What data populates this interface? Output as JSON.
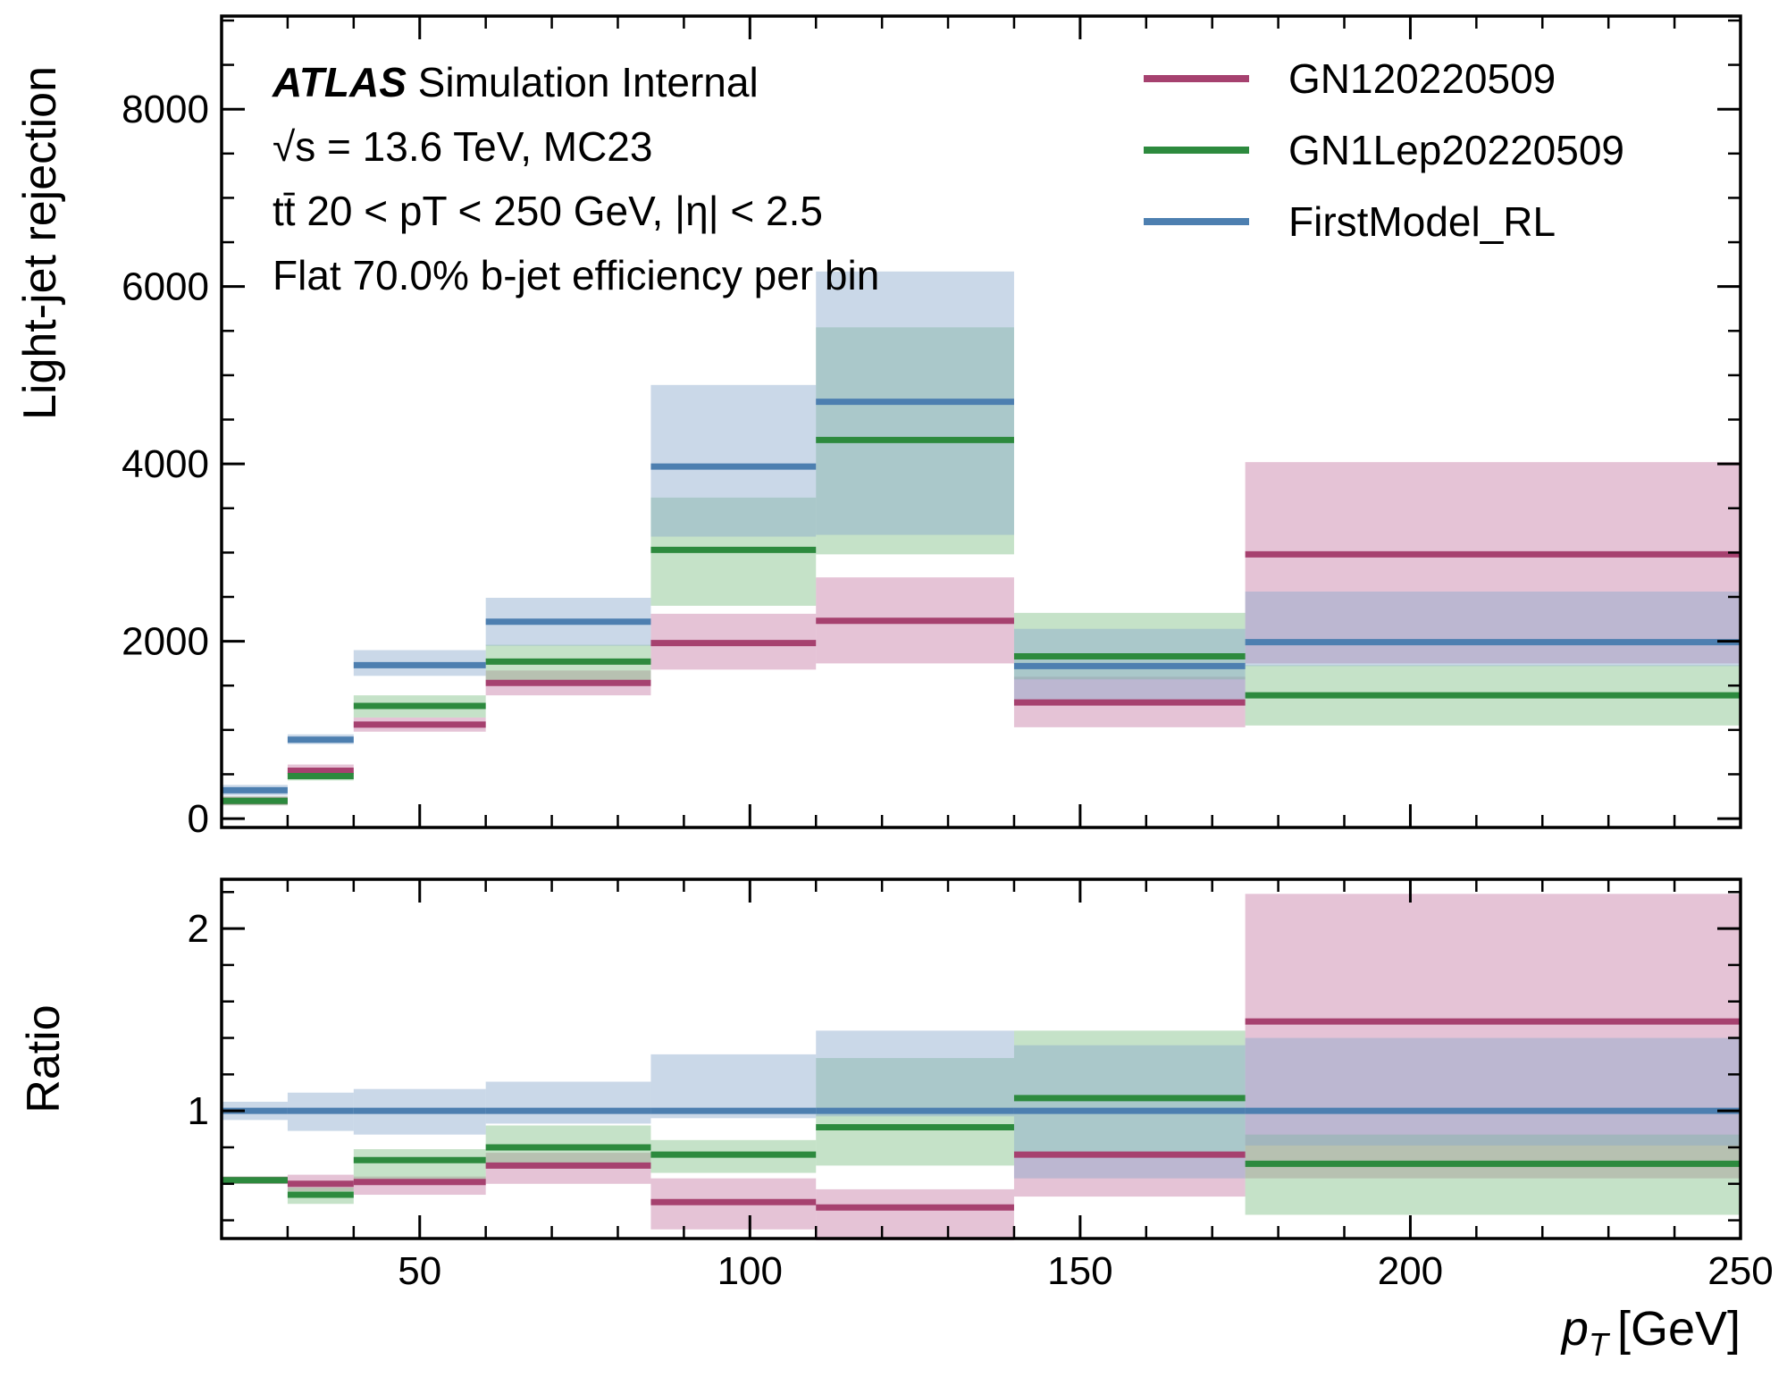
{
  "chart_data": {
    "type": "step",
    "bins": [
      [
        20,
        30
      ],
      [
        30,
        40
      ],
      [
        40,
        60
      ],
      [
        60,
        85
      ],
      [
        85,
        110
      ],
      [
        110,
        140
      ],
      [
        140,
        175
      ],
      [
        175,
        250
      ]
    ],
    "x_ticks": [
      50,
      100,
      150,
      200,
      250
    ],
    "xlim": [
      20,
      250
    ],
    "xlabel_var": "p",
    "xlabel_sub": "T",
    "xlabel_unit": "[GeV]",
    "annotations": {
      "atlas": "ATLAS",
      "line1_rest": " Simulation Internal",
      "line2": "√s = 13.6 TeV, MC23",
      "line3": "tt̄ 20 < pT < 250 GeV, |η| < 2.5",
      "line4": "Flat 70.0% b-jet efficiency per bin"
    },
    "top": {
      "ylabel": "Light-jet rejection",
      "ylim": [
        -100,
        9050
      ],
      "y_ticks": [
        0,
        2000,
        4000,
        6000,
        8000
      ],
      "series": [
        {
          "name": "GN120220509",
          "color": "#a6416f",
          "band_color": "#c67ba3",
          "values": [
            200,
            540,
            1060,
            1530,
            1980,
            2230,
            1310,
            2980
          ],
          "lower": [
            150,
            470,
            980,
            1390,
            1680,
            1750,
            1030,
            1750
          ],
          "upper": [
            250,
            610,
            1140,
            1670,
            2310,
            2720,
            1600,
            4020
          ]
        },
        {
          "name": "GN1Lep20220509",
          "color": "#2d8a3e",
          "band_color": "#7fbf84",
          "values": [
            200,
            480,
            1270,
            1770,
            3030,
            4270,
            1830,
            1390
          ],
          "lower": [
            150,
            430,
            1140,
            1560,
            2400,
            2980,
            1570,
            1050
          ],
          "upper": [
            250,
            530,
            1390,
            1960,
            3620,
            5540,
            2320,
            1730
          ]
        },
        {
          "name": "FirstModel_RL",
          "color": "#4d7fb0",
          "band_color": "#8aa9cb",
          "values": [
            320,
            890,
            1730,
            2220,
            3970,
            4700,
            1720,
            1990
          ],
          "lower": [
            260,
            840,
            1610,
            1950,
            3180,
            3200,
            1320,
            1720
          ],
          "upper": [
            380,
            950,
            1900,
            2490,
            4890,
            6170,
            2140,
            2560
          ]
        }
      ]
    },
    "bottom": {
      "ylabel": "Ratio",
      "ylim": [
        0.3,
        2.27
      ],
      "y_ticks": [
        1,
        2
      ],
      "series": [
        {
          "name": "GN120220509",
          "color": "#a6416f",
          "band_color": "#c67ba3",
          "values": [
            0.62,
            0.6,
            0.61,
            0.7,
            0.5,
            0.47,
            0.76,
            1.49
          ],
          "lower": [
            0.6,
            0.56,
            0.54,
            0.6,
            0.35,
            0.29,
            0.53,
            0.63
          ],
          "upper": [
            0.64,
            0.65,
            0.64,
            0.77,
            0.63,
            0.57,
            0.76,
            2.19
          ]
        },
        {
          "name": "GN1Lep20220509",
          "color": "#2d8a3e",
          "band_color": "#7fbf84",
          "values": [
            0.62,
            0.54,
            0.73,
            0.8,
            0.76,
            0.91,
            1.07,
            0.71
          ],
          "lower": [
            0.6,
            0.49,
            0.61,
            0.69,
            0.66,
            0.7,
            0.75,
            0.43
          ],
          "upper": [
            0.64,
            0.58,
            0.79,
            0.92,
            0.84,
            1.29,
            1.44,
            0.87
          ]
        },
        {
          "name": "FirstModel_RL",
          "color": "#4d7fb0",
          "band_color": "#8aa9cb",
          "values": [
            1.0,
            1.0,
            1.0,
            1.0,
            1.0,
            1.0,
            1.0,
            1.0
          ],
          "lower": [
            0.95,
            0.89,
            0.87,
            0.93,
            0.96,
            0.97,
            0.63,
            0.81
          ],
          "upper": [
            1.05,
            1.1,
            1.12,
            1.16,
            1.31,
            1.44,
            1.36,
            1.4
          ]
        }
      ]
    }
  }
}
